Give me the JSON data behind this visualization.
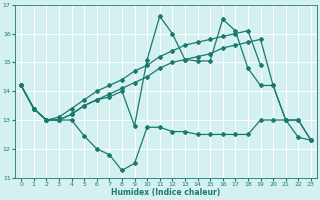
{
  "xlabel": "Humidex (Indice chaleur)",
  "bg_color": "#d4f0f0",
  "grid_color": "#ffffff",
  "line_color": "#1a7a6e",
  "ylim": [
    11,
    17
  ],
  "yticks": [
    11,
    12,
    13,
    14,
    15,
    16,
    17
  ],
  "xlim": [
    -0.5,
    23.5
  ],
  "x": [
    0,
    1,
    2,
    3,
    4,
    5,
    6,
    7,
    8,
    9,
    10,
    11,
    12,
    13,
    14,
    15,
    16,
    17,
    18,
    19,
    20,
    21,
    22,
    23
  ],
  "line_dip": [
    14.2,
    13.4,
    13.0,
    13.0,
    13.0,
    12.45,
    12.0,
    11.8,
    11.25,
    11.5,
    12.75,
    12.75,
    12.6,
    12.6,
    12.5,
    12.5,
    12.5,
    12.5,
    12.5,
    13.0,
    13.0,
    13.0,
    12.4,
    12.3
  ],
  "line_peak": [
    14.2,
    13.4,
    13.0,
    13.0,
    13.2,
    13.5,
    13.7,
    13.8,
    14.0,
    12.8,
    15.1,
    16.6,
    16.0,
    15.1,
    15.05,
    15.05,
    16.5,
    16.1,
    14.8,
    14.2,
    14.2,
    13.0,
    13.0,
    12.3
  ],
  "line_mid": [
    14.2,
    13.4,
    13.0,
    13.0,
    13.2,
    13.5,
    13.7,
    13.9,
    14.1,
    14.3,
    14.5,
    14.8,
    15.0,
    15.1,
    15.2,
    15.3,
    15.5,
    15.6,
    15.7,
    15.8,
    14.2,
    13.0,
    13.0,
    12.3
  ],
  "line_top": [
    14.2,
    13.4,
    13.0,
    13.1,
    13.4,
    13.7,
    14.0,
    14.2,
    14.4,
    14.7,
    14.9,
    15.2,
    15.4,
    15.6,
    15.7,
    15.8,
    15.9,
    16.0,
    16.1,
    14.9,
    null,
    null,
    null,
    null
  ]
}
